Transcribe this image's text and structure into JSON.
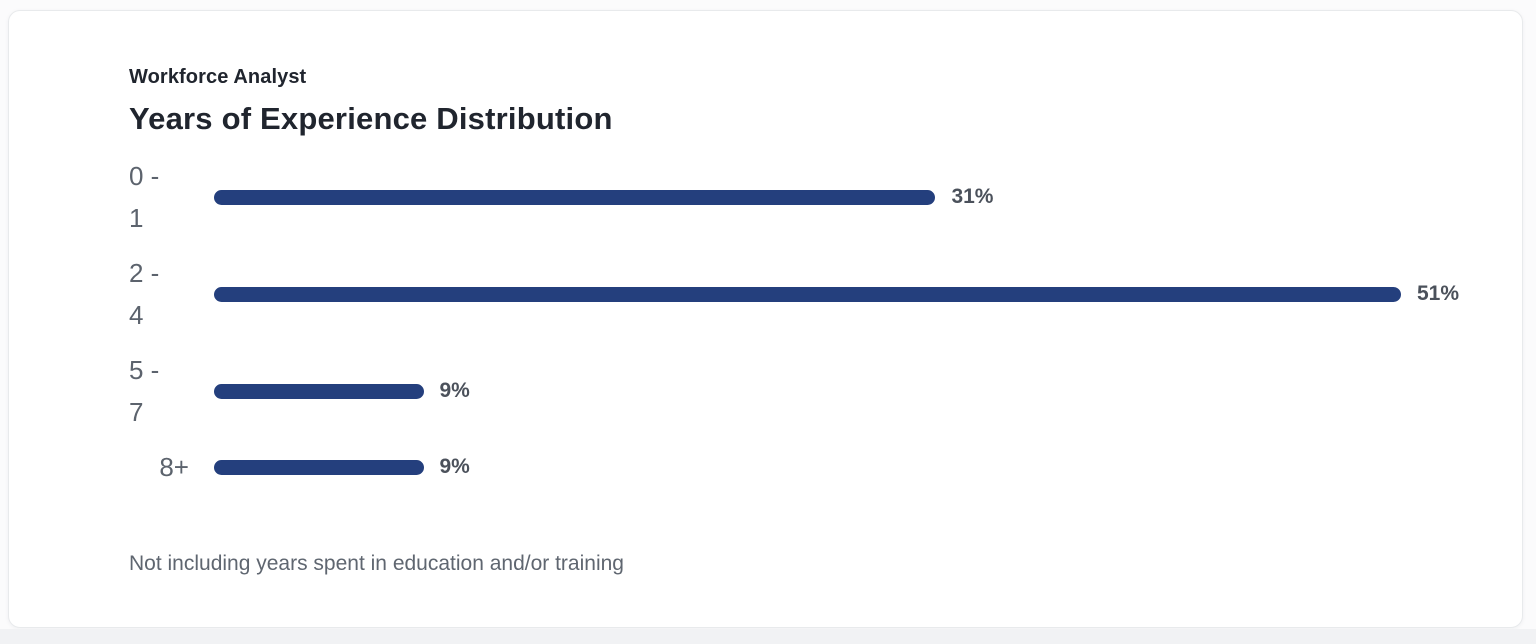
{
  "page": {
    "background": "#fbfbfc",
    "bottom_strip_color": "#f1f2f4",
    "card_background": "#ffffff",
    "card_border_color": "#e8eaec"
  },
  "header": {
    "eyebrow": "Workforce Analyst",
    "title": "Years of Experience Distribution"
  },
  "footnote": "Not including years spent in education and/or training",
  "chart_data": {
    "type": "bar",
    "orientation": "horizontal",
    "title": "Years of Experience Distribution",
    "subtitle": "Workforce Analyst",
    "categories": [
      "0 - 1",
      "2 - 4",
      "5 - 7",
      "8+"
    ],
    "category_label_lines": [
      [
        "0 -",
        "1"
      ],
      [
        "2 -",
        "4"
      ],
      [
        "5 -",
        "7"
      ],
      [
        "8+"
      ]
    ],
    "values": [
      31,
      51,
      9,
      9
    ],
    "value_labels": [
      "31%",
      "51%",
      "9%",
      "9%"
    ],
    "unit": "%",
    "xlim": [
      0,
      51
    ],
    "grid": false,
    "legend": false,
    "bar_color": "#243f7d",
    "category_label_color": "#5c636d",
    "value_label_color": "#4b515b",
    "annotation": "Not including years spent in education and/or training"
  }
}
